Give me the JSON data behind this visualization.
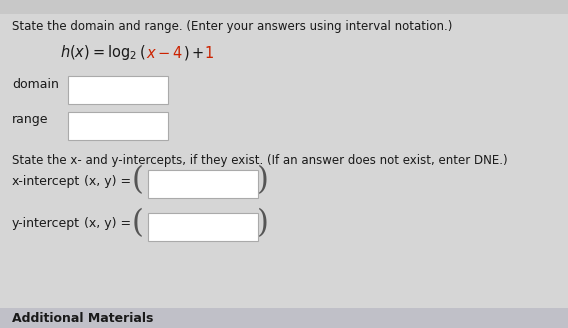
{
  "bg_color": "#d6d6d6",
  "white": "#ffffff",
  "black": "#1a1a1a",
  "red": "#cc2200",
  "dark_gray": "#444444",
  "title_text": "State the domain and range. (Enter your answers using interval notation.)",
  "label_domain": "domain",
  "label_range": "range",
  "intercept_title": "State the x- and y-intercepts, if they exist. (If an answer does not exist, enter DNE.)",
  "x_intercept_label": "x-intercept",
  "y_intercept_label": "y-intercept",
  "xy_label": "(x, y) =",
  "additional_label": "Additional Materials",
  "font_size_title": 8.5,
  "font_size_function": 10.5,
  "font_size_labels": 9.0,
  "font_size_additional": 9.0,
  "top_bar_color": "#b8b8b8",
  "footer_bar_color": "#c0c0c8"
}
